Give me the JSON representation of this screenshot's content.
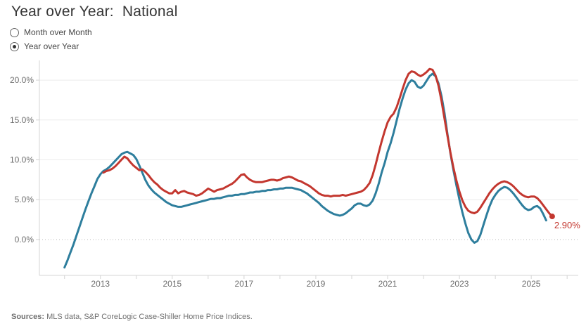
{
  "title": "Year over Year:  National",
  "controls": {
    "options": [
      {
        "label": "Month over Month",
        "selected": false
      },
      {
        "label": "Year over Year",
        "selected": true
      }
    ]
  },
  "footer": {
    "sources_label": "Sources:",
    "sources_text": " MLS data, S&P CoreLogic Case-Shiller Home Price Indices."
  },
  "colors": {
    "red": "#c3372f",
    "blue": "#2e7e9d",
    "grid": "#ececec",
    "zero_line": "#b9b9b9",
    "axis": "#d4d4d4",
    "tick_label": "#6e6e6e",
    "title_text": "#363636"
  },
  "chart_data": {
    "type": "line",
    "title": "Year over Year: National",
    "x_axis": {
      "tick_labels": [
        "2013",
        "2015",
        "2017",
        "2019",
        "2021",
        "2023",
        "2025"
      ],
      "tick_label_years": [
        2013,
        2015,
        2017,
        2019,
        2021,
        2023,
        2025
      ],
      "minor_tick_start": 2012,
      "minor_tick_end": 2026,
      "xlim": [
        2011.3,
        2026.31
      ]
    },
    "y_axis": {
      "tick_labels": [
        "0.0%",
        "5.0%",
        "10.0%",
        "15.0%",
        "20.0%"
      ],
      "tick_values": [
        0,
        5,
        10,
        15,
        20
      ],
      "ylim": [
        -4.5,
        22.3
      ],
      "grid": true,
      "zero_line_dotted": true
    },
    "frequency": "monthly",
    "series": [
      {
        "name": "S&P CoreLogic Case-Shiller",
        "color_key": "blue",
        "color": "#2e7e9d",
        "start_year": 2012,
        "start_month": 1,
        "values": [
          -3.5,
          -2.6,
          -1.6,
          -0.6,
          0.5,
          1.6,
          2.7,
          3.8,
          4.8,
          5.8,
          6.7,
          7.6,
          8.2,
          8.6,
          8.8,
          9.1,
          9.5,
          9.9,
          10.3,
          10.7,
          10.9,
          11.0,
          10.8,
          10.6,
          10.1,
          9.3,
          8.4,
          7.5,
          6.8,
          6.3,
          5.9,
          5.6,
          5.3,
          5.0,
          4.7,
          4.5,
          4.3,
          4.2,
          4.1,
          4.1,
          4.2,
          4.3,
          4.4,
          4.5,
          4.6,
          4.7,
          4.8,
          4.9,
          5.0,
          5.1,
          5.1,
          5.2,
          5.2,
          5.3,
          5.4,
          5.5,
          5.5,
          5.6,
          5.6,
          5.7,
          5.7,
          5.8,
          5.9,
          5.9,
          6.0,
          6.0,
          6.1,
          6.1,
          6.2,
          6.2,
          6.3,
          6.3,
          6.4,
          6.4,
          6.5,
          6.5,
          6.5,
          6.4,
          6.3,
          6.2,
          6.0,
          5.8,
          5.5,
          5.2,
          4.9,
          4.6,
          4.2,
          3.9,
          3.6,
          3.4,
          3.2,
          3.1,
          3.0,
          3.1,
          3.3,
          3.6,
          3.9,
          4.3,
          4.5,
          4.5,
          4.3,
          4.2,
          4.4,
          4.9,
          5.8,
          7.0,
          8.4,
          9.6,
          11.0,
          12.1,
          13.4,
          14.9,
          16.4,
          17.7,
          18.8,
          19.6,
          20.0,
          19.8,
          19.2,
          19.0,
          19.3,
          19.9,
          20.5,
          20.8,
          20.5,
          19.6,
          18.0,
          15.9,
          13.2,
          10.8,
          8.7,
          6.8,
          5.0,
          3.4,
          2.0,
          0.8,
          0.0,
          -0.4,
          -0.2,
          0.6,
          1.8,
          3.0,
          4.1,
          5.0,
          5.6,
          6.1,
          6.4,
          6.6,
          6.5,
          6.2,
          5.8,
          5.3,
          4.8,
          4.3,
          3.9,
          3.7,
          3.8,
          4.1,
          4.2,
          3.9,
          3.2,
          2.4
        ]
      },
      {
        "name": "MLS data",
        "color_key": "red",
        "color": "#c3372f",
        "start_year": 2013,
        "start_month": 2,
        "end_marker": true,
        "end_label": "2.90%",
        "values": [
          8.4,
          8.6,
          8.7,
          8.9,
          9.2,
          9.6,
          10.0,
          10.4,
          10.2,
          9.7,
          9.3,
          9.0,
          8.7,
          8.8,
          8.5,
          8.1,
          7.6,
          7.2,
          6.9,
          6.5,
          6.2,
          6.0,
          5.8,
          5.8,
          6.2,
          5.8,
          6.0,
          6.1,
          5.9,
          5.8,
          5.7,
          5.5,
          5.6,
          5.8,
          6.1,
          6.4,
          6.2,
          6.0,
          6.2,
          6.3,
          6.4,
          6.6,
          6.8,
          7.0,
          7.3,
          7.7,
          8.1,
          8.2,
          7.8,
          7.5,
          7.3,
          7.2,
          7.2,
          7.2,
          7.3,
          7.4,
          7.5,
          7.5,
          7.4,
          7.5,
          7.7,
          7.8,
          7.9,
          7.8,
          7.6,
          7.4,
          7.3,
          7.1,
          6.9,
          6.7,
          6.4,
          6.1,
          5.8,
          5.6,
          5.5,
          5.5,
          5.4,
          5.5,
          5.5,
          5.5,
          5.6,
          5.5,
          5.6,
          5.7,
          5.8,
          5.9,
          6.0,
          6.2,
          6.6,
          7.1,
          8.1,
          9.4,
          10.9,
          12.3,
          13.6,
          14.7,
          15.4,
          15.8,
          16.6,
          17.7,
          18.9,
          20.0,
          20.8,
          21.1,
          21.0,
          20.7,
          20.5,
          20.7,
          21.0,
          21.4,
          21.3,
          20.6,
          19.3,
          17.4,
          15.2,
          13.0,
          10.9,
          9.0,
          7.4,
          6.0,
          4.9,
          4.1,
          3.6,
          3.4,
          3.3,
          3.5,
          4.0,
          4.6,
          5.2,
          5.8,
          6.3,
          6.7,
          7.0,
          7.2,
          7.3,
          7.2,
          7.0,
          6.7,
          6.3,
          5.9,
          5.6,
          5.4,
          5.3,
          5.4,
          5.4,
          5.2,
          4.8,
          4.3,
          3.8,
          3.3,
          2.9
        ]
      }
    ],
    "annotation": {
      "text": "2.90%",
      "color": "#c3372f",
      "attached_to": "MLS data"
    }
  }
}
